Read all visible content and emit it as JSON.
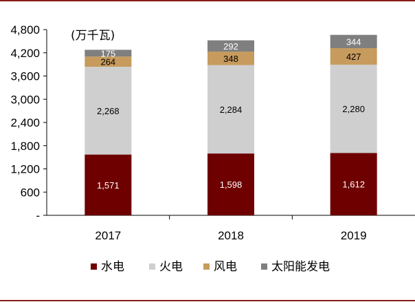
{
  "chart_data": {
    "type": "bar",
    "stacked": true,
    "unit_label": "(万千瓦)",
    "categories": [
      "2017",
      "2018",
      "2019"
    ],
    "ylim": [
      0,
      4800
    ],
    "y_ticks": [
      "-",
      "600",
      "1,200",
      "1,800",
      "2,400",
      "3,000",
      "3,600",
      "4,200",
      "4,800"
    ],
    "y_tick_values": [
      0,
      600,
      1200,
      1800,
      2400,
      3000,
      3600,
      4200,
      4800
    ],
    "series": [
      {
        "name": "水电",
        "color": "#6e0000",
        "label_color": "#ffffff",
        "values": [
          1571,
          1598,
          1612
        ],
        "labels": [
          "1,571",
          "1,598",
          "1,612"
        ]
      },
      {
        "name": "火电",
        "color": "#cfcfcf",
        "label_color": "#000000",
        "values": [
          2268,
          2284,
          2280
        ],
        "labels": [
          "2,268",
          "2,284",
          "2,280"
        ]
      },
      {
        "name": "风电",
        "color": "#c79b5d",
        "label_color": "#000000",
        "values": [
          264,
          348,
          427
        ],
        "labels": [
          "264",
          "348",
          "427"
        ]
      },
      {
        "name": "太阳能发电",
        "color": "#7f7f7f",
        "label_color": "#ffffff",
        "values": [
          175,
          292,
          344
        ],
        "labels": [
          "175",
          "292",
          "344"
        ]
      }
    ],
    "legend_position": "bottom",
    "grid": false
  },
  "frame": {
    "border_color": "#8b1a1a"
  }
}
